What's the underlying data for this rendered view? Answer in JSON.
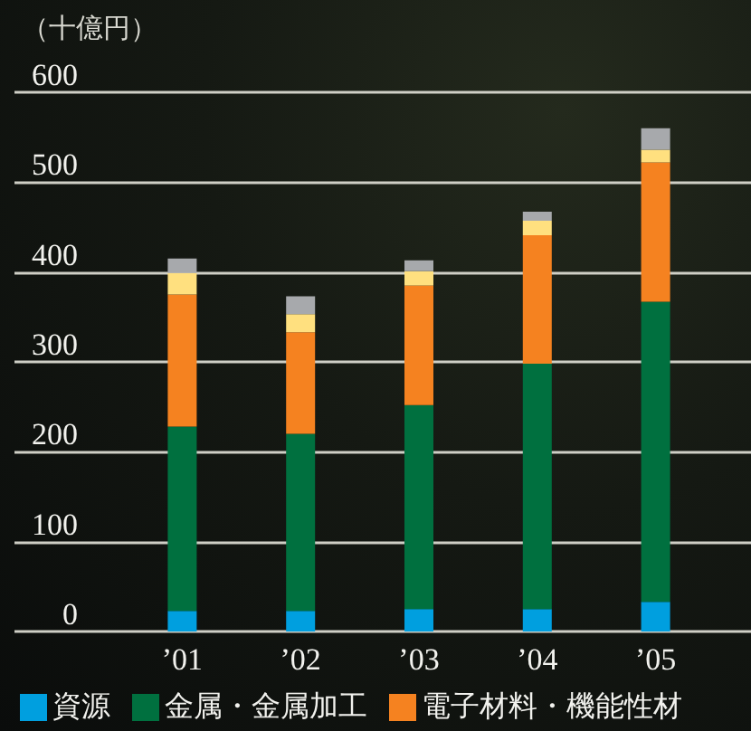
{
  "chart_data": {
    "type": "bar",
    "stacked": true,
    "ylabel": "（十億円）",
    "categories": [
      "’01",
      "’02",
      "’03",
      "’04",
      "’05"
    ],
    "series": [
      {
        "name": "資源",
        "color": "#009fdf",
        "values": [
          23,
          23,
          25,
          25,
          33
        ]
      },
      {
        "name": "金属・金属加工",
        "color": "#00703f",
        "values": [
          205,
          197,
          227,
          273,
          334
        ]
      },
      {
        "name": "電子材料・機能性材",
        "color": "#f58220",
        "values": [
          147,
          113,
          133,
          143,
          155
        ]
      },
      {
        "color": "#ffe07f",
        "values": [
          24,
          20,
          16,
          16,
          14
        ]
      },
      {
        "color": "#a7a9ac",
        "values": [
          16,
          20,
          12,
          10,
          24
        ]
      }
    ],
    "ylim": [
      0,
      600
    ],
    "yticks": [
      0,
      100,
      200,
      300,
      400,
      500,
      600
    ],
    "grid": "y",
    "legend": "bottom"
  }
}
